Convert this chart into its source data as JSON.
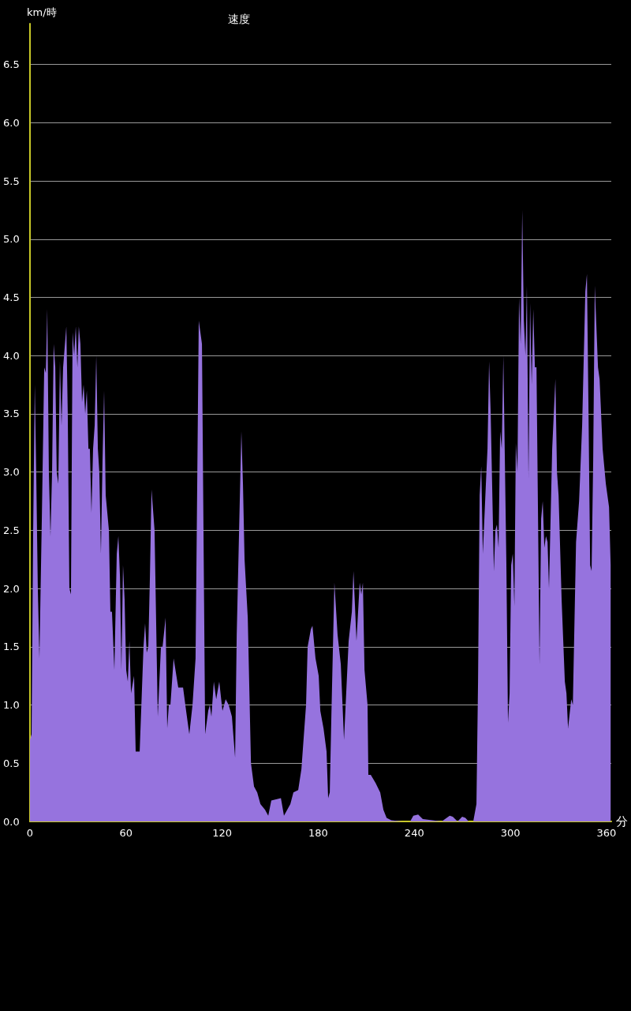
{
  "chart_data": {
    "type": "area",
    "title": "速度",
    "ylabel": "km/時",
    "xlabel": "分",
    "x": [
      0,
      1,
      2,
      3,
      3.9,
      4.9,
      5.9,
      7.4,
      8.9,
      9.9,
      10.8,
      11.8,
      12.8,
      13.8,
      14.8,
      15.8,
      16.7,
      17.7,
      18.7,
      19.7,
      20.7,
      22.7,
      23.6,
      24.6,
      25.6,
      26.6,
      27.6,
      28.6,
      29.6,
      30.5,
      31.5,
      32.5,
      33.5,
      34.5,
      35.5,
      36.5,
      37.4,
      38.4,
      39.4,
      40.4,
      41.4,
      42.4,
      43.3,
      44.3,
      45.3,
      46.3,
      47.3,
      49.3,
      50.2,
      51.2,
      52.7,
      54.2,
      55.2,
      56.2,
      57.1,
      58.1,
      59.1,
      60.1,
      61.1,
      62.1,
      63.1,
      65,
      66,
      68.5,
      70.9,
      71.9,
      72.9,
      73.9,
      74.9,
      75.9,
      77.8,
      79.8,
      81.8,
      82.8,
      84.7,
      85.7,
      86.7,
      87.7,
      88.7,
      89.7,
      92.6,
      95.6,
      97.5,
      99.5,
      101.5,
      103.4,
      105.4,
      107.4,
      109.4,
      111.3,
      112.3,
      113.3,
      114.8,
      116.3,
      118.2,
      120.2,
      122.2,
      124.1,
      126.1,
      128.1,
      129.1,
      132,
      133,
      134,
      136,
      138,
      139.9,
      141.9,
      143.9,
      146.8,
      148.8,
      150.7,
      156.7,
      158.6,
      162.6,
      164.5,
      167.5,
      169.5,
      172.4,
      173.4,
      175.4,
      176.4,
      178.3,
      180.3,
      181.3,
      183.3,
      185.2,
      186.2,
      187.2,
      188.2,
      190.1,
      192.1,
      194.1,
      196.1,
      199,
      201,
      202,
      203.9,
      205.9,
      206.9,
      207.9,
      208.9,
      210.8,
      211.3,
      212.8,
      215.8,
      218.7,
      220.7,
      222.7,
      225.6,
      232.5,
      237.4,
      239.4,
      242.4,
      245.3,
      257.1,
      262.1,
      264,
      267,
      269.9,
      271.9,
      273.9,
      276.8,
      278.8,
      279.8,
      280.8,
      281.8,
      282.8,
      284.7,
      285.7,
      286.7,
      287.7,
      289.7,
      290.6,
      291.6,
      292.6,
      293.6,
      294.6,
      295.6,
      297.5,
      298.5,
      299.5,
      300.5,
      301.5,
      302.5,
      303.4,
      304.4,
      305.4,
      306.4,
      307.4,
      308.4,
      309.4,
      310.3,
      311.3,
      312.3,
      313.3,
      314.3,
      315.3,
      316.3,
      318.2,
      319.2,
      320.2,
      321.2,
      322.2,
      323.2,
      324.1,
      326.1,
      328.1,
      329.1,
      330.1,
      332,
      334,
      335,
      336,
      338,
      339,
      341,
      342.9,
      344.8,
      346.8,
      347.8,
      348.8,
      349.8,
      350.7,
      351.7,
      352.7,
      354.7,
      355.7,
      357.6,
      359.6,
      361.6,
      362.6
    ],
    "values": [
      0.7,
      0.75,
      2.5,
      3.75,
      3.0,
      2.0,
      1.4,
      2.6,
      3.9,
      3.85,
      4.4,
      3.0,
      2.45,
      3.0,
      4.1,
      3.9,
      3.0,
      2.9,
      3.95,
      3.4,
      3.9,
      4.25,
      3.5,
      2.0,
      1.95,
      4.2,
      4.0,
      4.25,
      3.9,
      4.25,
      4.1,
      3.6,
      3.75,
      3.5,
      3.7,
      3.2,
      3.2,
      2.65,
      3.2,
      3.4,
      4.0,
      3.2,
      3.0,
      2.3,
      3.1,
      3.7,
      2.8,
      2.5,
      1.8,
      1.8,
      1.3,
      2.3,
      2.45,
      2.1,
      1.3,
      2.2,
      1.9,
      1.3,
      1.2,
      1.55,
      1.1,
      1.25,
      0.6,
      0.6,
      1.5,
      1.7,
      1.45,
      1.5,
      2.1,
      2.85,
      2.5,
      0.9,
      1.5,
      1.5,
      1.75,
      0.8,
      1.0,
      1.0,
      1.2,
      1.4,
      1.15,
      1.15,
      0.95,
      0.75,
      1.0,
      1.4,
      4.3,
      4.1,
      0.75,
      0.95,
      1.0,
      0.9,
      1.2,
      1.05,
      1.2,
      0.95,
      1.05,
      1.0,
      0.9,
      0.55,
      1.6,
      3.35,
      2.9,
      2.25,
      1.75,
      0.5,
      0.3,
      0.25,
      0.15,
      0.1,
      0.05,
      0.18,
      0.2,
      0.05,
      0.15,
      0.25,
      0.27,
      0.45,
      1.0,
      1.5,
      1.65,
      1.68,
      1.4,
      1.25,
      0.95,
      0.8,
      0.6,
      0.2,
      0.25,
      0.9,
      2.05,
      1.6,
      1.35,
      0.7,
      1.55,
      1.8,
      2.15,
      1.55,
      2.05,
      1.95,
      2.05,
      1.3,
      1.0,
      0.4,
      0.4,
      0.33,
      0.25,
      0.1,
      0.03,
      0.01,
      0,
      0,
      0.05,
      0.06,
      0.02,
      0,
      0.05,
      0.04,
      0,
      0.04,
      0.03,
      0,
      0,
      0.15,
      1.2,
      2.8,
      3.05,
      2.3,
      2.9,
      3.2,
      3.95,
      3.5,
      2.15,
      2.5,
      2.55,
      2.35,
      3.35,
      3.2,
      4.0,
      2.2,
      0.85,
      1.1,
      2.2,
      2.3,
      1.85,
      3.25,
      3.0,
      4.5,
      4.1,
      5.25,
      4.3,
      4.0,
      4.6,
      2.95,
      4.45,
      3.75,
      4.4,
      3.9,
      3.9,
      1.35,
      2.6,
      2.75,
      2.35,
      2.45,
      2.4,
      2.0,
      3.2,
      3.8,
      3.0,
      2.8,
      1.9,
      1.2,
      1.1,
      0.8,
      1.05,
      1.0,
      2.4,
      2.75,
      3.4,
      4.55,
      4.7,
      3.5,
      2.2,
      2.15,
      3.1,
      4.6,
      3.9,
      3.8,
      3.2,
      2.9,
      2.7,
      2.2
    ],
    "color": "#9673de",
    "xlim": [
      0,
      363
    ],
    "xticks": [
      0,
      60,
      120,
      180,
      240,
      300,
      360
    ],
    "ylim": [
      0,
      6.85
    ],
    "yticks": [
      {
        "value": 0,
        "label": "0.0"
      },
      0.5,
      {
        "value": 1,
        "label": "1.0"
      },
      1.5,
      {
        "value": 2,
        "label": "2.0"
      },
      2.5,
      {
        "value": 3,
        "label": "3.0"
      },
      3.5,
      {
        "value": 4,
        "label": "4.0"
      },
      4.5,
      {
        "value": 5,
        "label": "5.0"
      },
      5.5,
      {
        "value": 6,
        "label": "6.0"
      },
      6.5
    ],
    "grid": "y"
  }
}
